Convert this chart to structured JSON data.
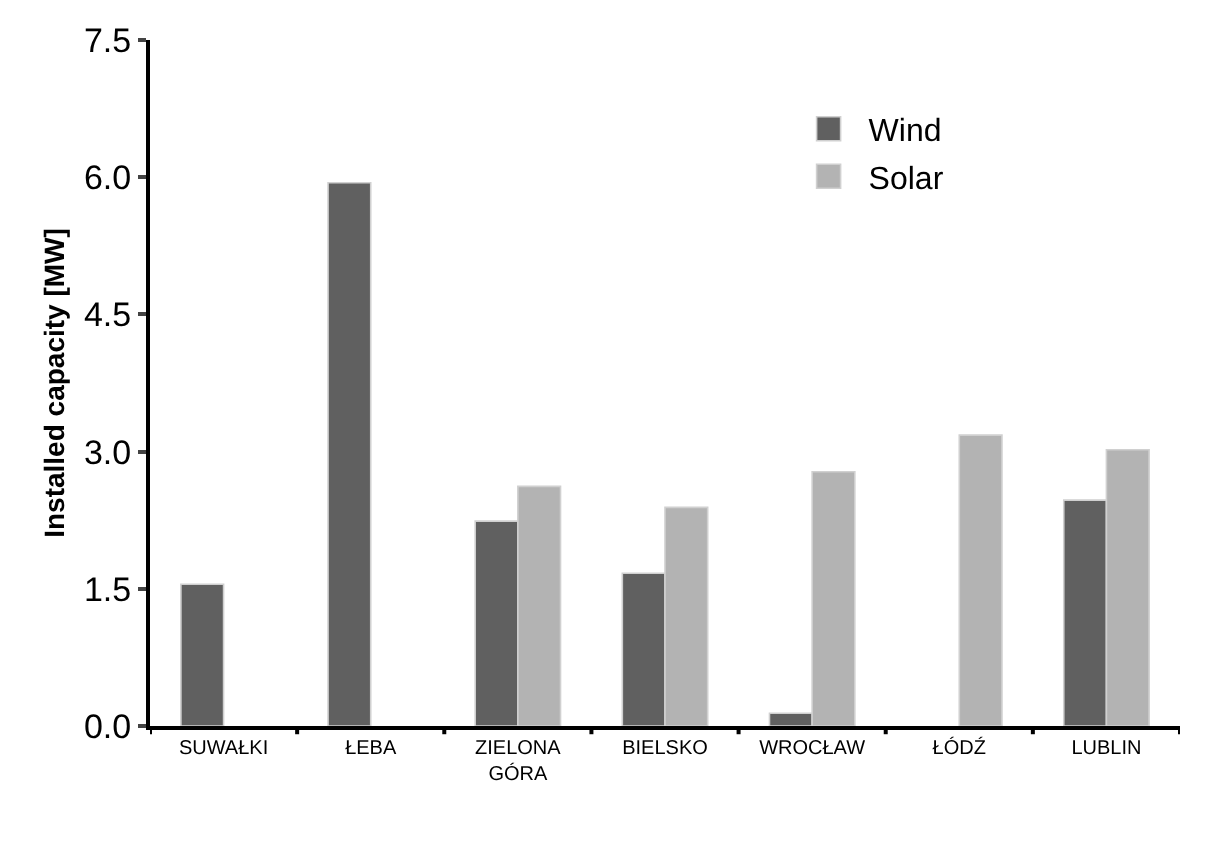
{
  "chart_data": {
    "type": "bar",
    "ylabel": "Installed capacity [MW]",
    "categories": [
      "SUWAŁKI",
      "ŁEBA",
      "ZIELONA GÓRA",
      "BIELSKO",
      "WROCŁAW",
      "ŁÓDŹ",
      "LUBLIN"
    ],
    "series": [
      {
        "name": "Wind",
        "color": "#606060",
        "values": [
          1.55,
          5.94,
          2.24,
          1.67,
          0.14,
          null,
          2.47
        ]
      },
      {
        "name": "Solar",
        "color": "#b3b3b3",
        "values": [
          null,
          null,
          2.62,
          2.39,
          2.78,
          3.18,
          3.02
        ]
      }
    ],
    "ylim": [
      0,
      7.5
    ],
    "yticks": [
      {
        "value": 0,
        "label": "0.0"
      },
      1.5,
      {
        "value": 3,
        "label": "3.0"
      },
      4.5,
      {
        "value": 6,
        "label": "6.0"
      },
      7.5
    ],
    "legend": "top right"
  }
}
